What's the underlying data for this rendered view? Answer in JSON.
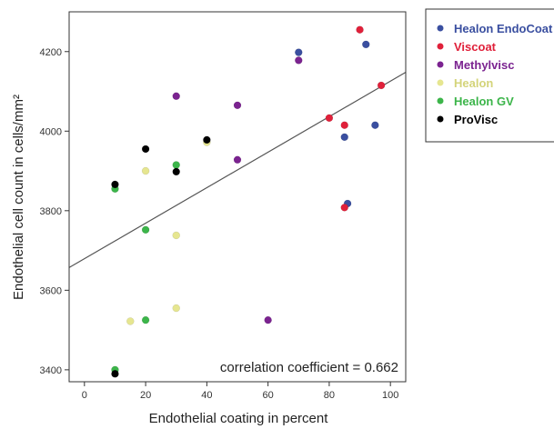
{
  "chart_data": {
    "type": "scatter",
    "xlabel": "Endothelial coating in percent",
    "ylabel": "Endothelial cell count in cells/mm²",
    "xlim": [
      -5,
      105
    ],
    "ylim": [
      3370,
      4300
    ],
    "x_ticks": [
      0,
      20,
      40,
      60,
      80,
      100
    ],
    "y_ticks": [
      3400,
      3600,
      3800,
      4000,
      4200
    ],
    "grid": false,
    "legend_position": "right",
    "annotation": "correlation coefficient = 0.662",
    "fit_line": {
      "x": [
        -5,
        105
      ],
      "y": [
        3657,
        4148
      ]
    },
    "series": [
      {
        "name": "Healon EndoCoat",
        "color": "#3a4fa0",
        "points": [
          [
            70,
            4198
          ],
          [
            92,
            4218
          ],
          [
            85,
            3985
          ],
          [
            95,
            4015
          ],
          [
            86,
            3818
          ]
        ]
      },
      {
        "name": "Viscoat",
        "color": "#e0203a",
        "points": [
          [
            90,
            4255
          ],
          [
            97,
            4115
          ],
          [
            80,
            4033
          ],
          [
            85,
            4015
          ],
          [
            85,
            3808
          ]
        ]
      },
      {
        "name": "Methylvisc",
        "color": "#7b2390",
        "points": [
          [
            70,
            4178
          ],
          [
            30,
            4088
          ],
          [
            50,
            4065
          ],
          [
            50,
            3928
          ],
          [
            60,
            3525
          ]
        ]
      },
      {
        "name": "Healon",
        "color": "#e6e690",
        "points": [
          [
            40,
            3972
          ],
          [
            20,
            3900
          ],
          [
            30,
            3738
          ],
          [
            15,
            3522
          ],
          [
            30,
            3555
          ]
        ]
      },
      {
        "name": "Healon GV",
        "color": "#3cb54a",
        "points": [
          [
            30,
            3915
          ],
          [
            10,
            3855
          ],
          [
            20,
            3752
          ],
          [
            20,
            3525
          ],
          [
            10,
            3400
          ]
        ]
      },
      {
        "name": "ProVisc",
        "color": "#000000",
        "points": [
          [
            40,
            3978
          ],
          [
            20,
            3955
          ],
          [
            30,
            3898
          ],
          [
            10,
            3866
          ],
          [
            10,
            3390
          ]
        ]
      }
    ]
  }
}
